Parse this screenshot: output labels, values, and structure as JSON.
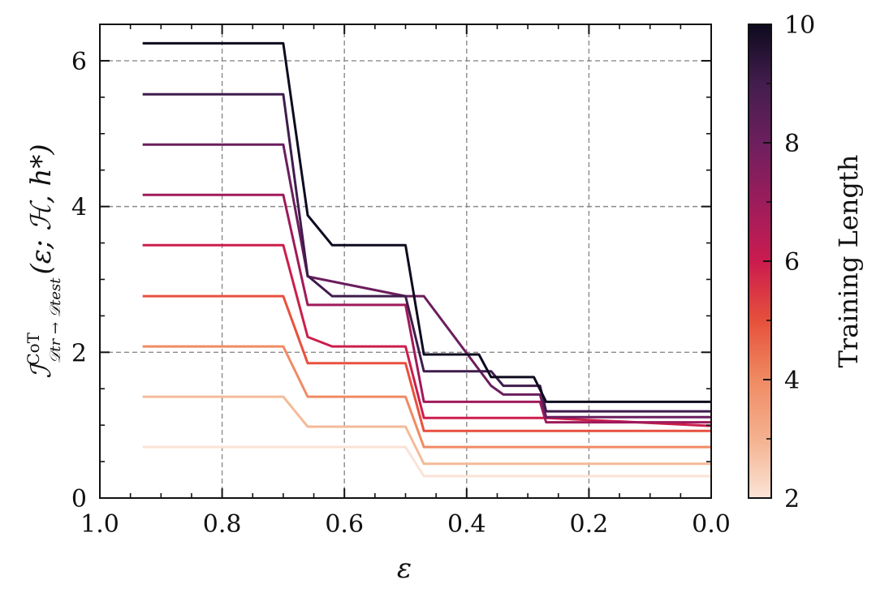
{
  "chart_data": {
    "type": "line",
    "xlabel": "ε",
    "ylabel_main": "ℐ",
    "ylabel_sup": "CoT",
    "ylabel_sub": "𝒟tr → 𝒟test",
    "ylabel_args": "(ε; ℋ, h*)",
    "xlim": [
      1.0,
      0.0
    ],
    "ylim": [
      0,
      6.5
    ],
    "x_ticks": [
      1.0,
      0.8,
      0.6,
      0.4,
      0.2,
      0.0
    ],
    "x_tick_labels": [
      "1.0",
      "0.8",
      "0.6",
      "0.4",
      "0.2",
      "0.0"
    ],
    "y_ticks": [
      0,
      2,
      4,
      6
    ],
    "y_tick_labels": [
      "0",
      "2",
      "4",
      "6"
    ],
    "grid": true,
    "grid_style": "dashed",
    "colorbar": {
      "label": "Training Length",
      "min": 2,
      "max": 10,
      "ticks": [
        2,
        4,
        6,
        8,
        10
      ],
      "tick_labels": [
        "2",
        "4",
        "6",
        "8",
        "10"
      ],
      "colormap": "rocket_r",
      "colors": [
        "#fbe4d6",
        "#f4b18f",
        "#ef8a62",
        "#e6503b",
        "#cb1b4f",
        "#9c1c5c",
        "#6d1f5e",
        "#431d4e",
        "#0d0a1e"
      ]
    },
    "series": [
      {
        "training_length": 2,
        "color": "#fae3d6",
        "x": [
          0.93,
          0.7,
          0.66,
          0.5,
          0.47,
          0.0
        ],
        "y": [
          0.7,
          0.7,
          0.7,
          0.7,
          0.3,
          0.3
        ]
      },
      {
        "training_length": 3,
        "color": "#f4bb98",
        "x": [
          0.93,
          0.7,
          0.66,
          0.5,
          0.47,
          0.0
        ],
        "y": [
          1.39,
          1.39,
          0.98,
          0.98,
          0.47,
          0.47
        ]
      },
      {
        "training_length": 4,
        "color": "#f08b63",
        "x": [
          0.93,
          0.7,
          0.66,
          0.5,
          0.47,
          0.0
        ],
        "y": [
          2.08,
          2.08,
          1.39,
          1.39,
          0.7,
          0.7
        ]
      },
      {
        "training_length": 5,
        "color": "#e9503e",
        "x": [
          0.93,
          0.7,
          0.66,
          0.5,
          0.47,
          0.0
        ],
        "y": [
          2.77,
          2.77,
          1.85,
          1.85,
          0.92,
          0.92
        ]
      },
      {
        "training_length": 6,
        "color": "#cc1e4c",
        "x": [
          0.93,
          0.7,
          0.66,
          0.62,
          0.5,
          0.47,
          0.27,
          0.0
        ],
        "y": [
          3.47,
          3.47,
          2.21,
          2.08,
          2.08,
          1.1,
          1.1,
          0.99
        ]
      },
      {
        "training_length": 7,
        "color": "#9f1a5a",
        "x": [
          0.93,
          0.7,
          0.66,
          0.5,
          0.47,
          0.28,
          0.27,
          0.0
        ],
        "y": [
          4.16,
          4.16,
          2.65,
          2.65,
          1.32,
          1.32,
          1.04,
          1.04
        ]
      },
      {
        "training_length": 8,
        "color": "#6b1e5e",
        "x": [
          0.93,
          0.7,
          0.66,
          0.5,
          0.47,
          0.36,
          0.34,
          0.28,
          0.27,
          0.0
        ],
        "y": [
          4.85,
          4.85,
          3.04,
          2.77,
          2.77,
          1.54,
          1.42,
          1.42,
          1.11,
          1.11
        ]
      },
      {
        "training_length": 9,
        "color": "#3f1c4c",
        "x": [
          0.93,
          0.7,
          0.66,
          0.62,
          0.5,
          0.47,
          0.36,
          0.34,
          0.28,
          0.27,
          0.0
        ],
        "y": [
          5.54,
          5.54,
          3.05,
          2.77,
          2.77,
          1.74,
          1.74,
          1.54,
          1.54,
          1.19,
          1.19
        ]
      },
      {
        "training_length": 10,
        "color": "#0e0a1f",
        "x": [
          0.93,
          0.7,
          0.66,
          0.62,
          0.5,
          0.47,
          0.38,
          0.36,
          0.29,
          0.27,
          0.0
        ],
        "y": [
          6.24,
          6.24,
          3.88,
          3.47,
          3.47,
          1.97,
          1.97,
          1.66,
          1.66,
          1.32,
          1.32
        ]
      }
    ]
  }
}
